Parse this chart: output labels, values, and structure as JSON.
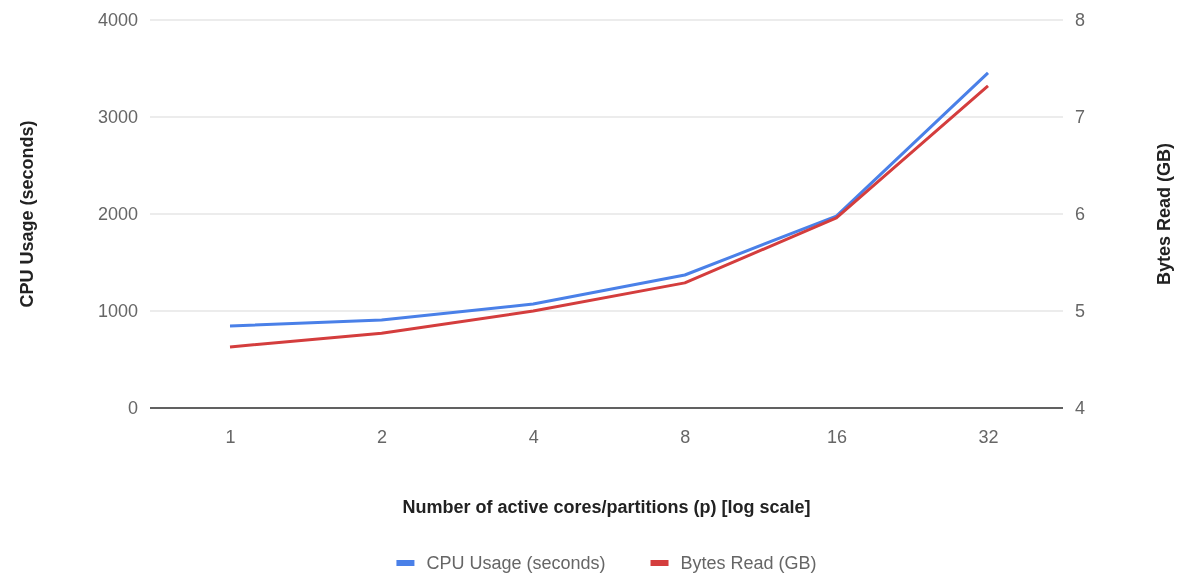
{
  "chart_data": {
    "type": "line",
    "xlabel": "Number of active cores/partitions (p) [log scale]",
    "ylabel": "CPU Usage (seconds)",
    "y2label": "Bytes Read (GB)",
    "categories": [
      "1",
      "2",
      "4",
      "8",
      "16",
      "32"
    ],
    "series": [
      {
        "name": "CPU Usage (seconds)",
        "color": "#4a80e8",
        "values": [
          845,
          907,
          1072,
          1371,
          1979,
          3454
        ]
      },
      {
        "name": "Bytes Read (GB)",
        "color": "#d43d3d",
        "axis": "y2",
        "values": [
          4.63,
          4.77,
          5.0,
          5.29,
          5.96,
          7.32
        ]
      }
    ],
    "ylim": [
      0,
      4000
    ],
    "yticks": [
      0,
      1000,
      2000,
      3000,
      4000
    ],
    "y2lim": [
      4,
      8
    ],
    "y2ticks": [
      4,
      5,
      6,
      7,
      8
    ],
    "grid": "y",
    "legend": "bottom"
  }
}
